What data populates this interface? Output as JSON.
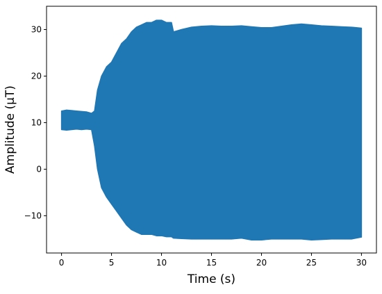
{
  "chart_data": {
    "type": "area",
    "xlabel": "Time (s)",
    "ylabel": "Amplitude (μT)",
    "xlim": [
      -1.5,
      31.5
    ],
    "ylim": [
      -18,
      35
    ],
    "x_ticks": [
      0,
      5,
      10,
      15,
      20,
      25,
      30
    ],
    "y_ticks": [
      -10,
      0,
      10,
      20,
      30
    ],
    "x_tick_labels": [
      "0",
      "5",
      "10",
      "15",
      "20",
      "25",
      "30"
    ],
    "y_tick_labels": [
      "−10",
      "0",
      "10",
      "20",
      "30"
    ],
    "grid": false,
    "series_color": "#1f77b4",
    "series": [
      {
        "x": [
          0,
          0.5,
          1,
          1.5,
          2,
          2.5,
          3,
          3.3,
          3.6,
          4,
          4.5,
          5,
          5.5,
          6,
          6.5,
          7,
          7.5,
          8,
          8.5,
          9,
          9.5,
          10,
          10.5,
          11,
          11.2,
          12,
          13,
          14,
          15,
          16,
          17,
          18,
          19,
          20,
          21,
          22,
          23,
          24,
          25,
          26,
          27,
          28,
          29,
          30
        ],
        "y_upper": [
          12.5,
          12.7,
          12.6,
          12.5,
          12.4,
          12.3,
          12.0,
          12.5,
          17,
          20,
          22,
          23,
          25,
          27,
          28,
          29.5,
          30.5,
          31,
          31.5,
          31.5,
          32,
          32,
          31.5,
          31.5,
          29.5,
          30,
          30.5,
          30.7,
          30.8,
          30.7,
          30.7,
          30.8,
          30.6,
          30.4,
          30.4,
          30.7,
          31,
          31.2,
          31,
          30.8,
          30.7,
          30.6,
          30.5,
          30.3
        ],
        "y_lower": [
          8.5,
          8.4,
          8.5,
          8.6,
          8.5,
          8.6,
          8.5,
          5,
          0,
          -4,
          -6,
          -7.5,
          -9,
          -10.5,
          -12,
          -13,
          -13.5,
          -14,
          -14,
          -14,
          -14.3,
          -14.3,
          -14.5,
          -14.5,
          -14.8,
          -14.9,
          -15,
          -15,
          -15,
          -15,
          -15,
          -14.8,
          -15.2,
          -15.2,
          -15,
          -15,
          -15,
          -15,
          -15.2,
          -15.1,
          -15,
          -15,
          -15,
          -14.6
        ]
      }
    ]
  }
}
